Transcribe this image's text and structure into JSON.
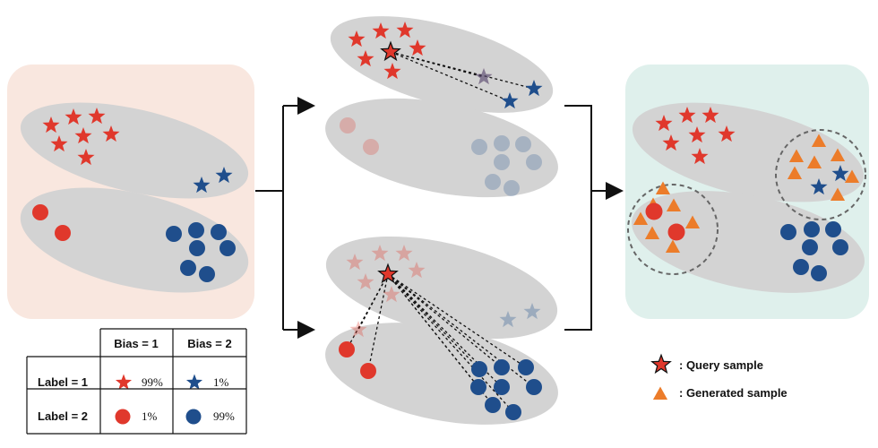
{
  "colors": {
    "red": "#e0382c",
    "blue": "#1f4e8c",
    "orange": "#ec7c2a",
    "gray_ellipse": "#d3d3d3",
    "left_panel_bg": "#f9e7df",
    "right_panel_bg": "#dff0ec",
    "arrow": "#111111",
    "dashed_line": "#111111"
  },
  "table": {
    "col_headers": [
      "Bias = 1",
      "Bias = 2"
    ],
    "rows": [
      {
        "label": "Label = 1",
        "cells": [
          {
            "marker": "red-star-icon",
            "value": "99%"
          },
          {
            "marker": "blue-star-icon",
            "value": "1%"
          }
        ]
      },
      {
        "label": "Label = 2",
        "cells": [
          {
            "marker": "red-circle-icon",
            "value": "1%"
          },
          {
            "marker": "blue-circle-icon",
            "value": "99%"
          }
        ]
      }
    ]
  },
  "legend": {
    "items": [
      {
        "marker": "query-star-icon",
        "label": ": Query sample"
      },
      {
        "marker": "orange-triangle-icon",
        "label": ": Generated sample"
      }
    ]
  }
}
